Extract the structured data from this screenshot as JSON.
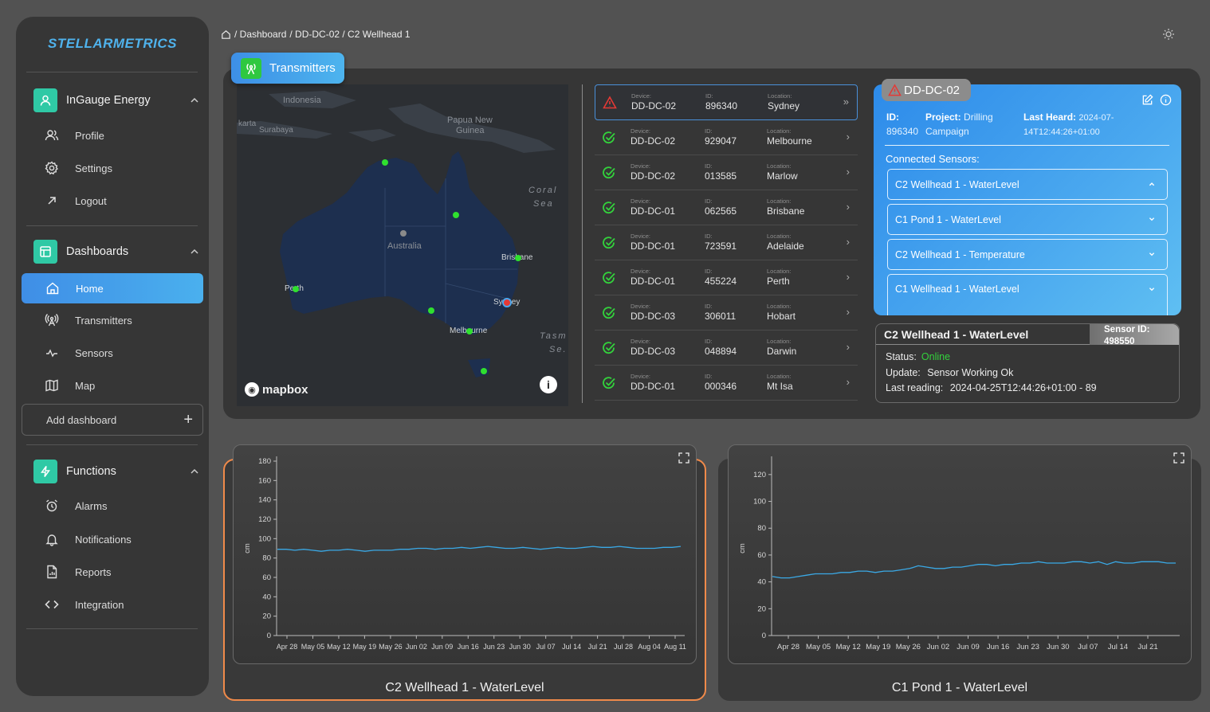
{
  "brand": "STELLARMETRICS",
  "sidebar": {
    "org_group": {
      "label": "InGauge Energy",
      "items": [
        {
          "label": "Profile"
        },
        {
          "label": "Settings"
        },
        {
          "label": "Logout"
        }
      ]
    },
    "dash_group": {
      "label": "Dashboards",
      "items": [
        {
          "label": "Home"
        },
        {
          "label": "Transmitters"
        },
        {
          "label": "Sensors"
        },
        {
          "label": "Map"
        }
      ]
    },
    "add_dashboard": "Add dashboard",
    "func_group": {
      "label": "Functions",
      "items": [
        {
          "label": "Alarms"
        },
        {
          "label": "Notifications"
        },
        {
          "label": "Reports"
        },
        {
          "label": "Integration"
        }
      ]
    }
  },
  "breadcrumb": [
    "/ Dashboard",
    "/ DD-DC-02 / C2 Wellhead 1"
  ],
  "transmitters_tab": "Transmitters",
  "map": {
    "labels": [
      {
        "text": "Indonesia"
      },
      {
        "text": "karta"
      },
      {
        "text": "Surabaya"
      },
      {
        "text": "Papua New"
      },
      {
        "text": "Guinea"
      },
      {
        "text": "Coral"
      },
      {
        "text": "Sea"
      },
      {
        "text": "Australia"
      },
      {
        "text": "Brisbane"
      },
      {
        "text": "Perth"
      },
      {
        "text": "Sydney"
      },
      {
        "text": "Melbourne"
      },
      {
        "text": "Tasm"
      },
      {
        "text": "Se."
      }
    ],
    "logo_text": "mapbox"
  },
  "list_labels": {
    "device": "Device:",
    "id": "ID:",
    "location": "Location:"
  },
  "transmitters": [
    {
      "device": "DD-DC-02",
      "id": "896340",
      "location": "Sydney",
      "status": "alert"
    },
    {
      "device": "DD-DC-02",
      "id": "929047",
      "location": "Melbourne",
      "status": "ok"
    },
    {
      "device": "DD-DC-02",
      "id": "013585",
      "location": "Marlow",
      "status": "ok"
    },
    {
      "device": "DD-DC-01",
      "id": "062565",
      "location": "Brisbane",
      "status": "ok"
    },
    {
      "device": "DD-DC-01",
      "id": "723591",
      "location": "Adelaide",
      "status": "ok"
    },
    {
      "device": "DD-DC-01",
      "id": "455224",
      "location": "Perth",
      "status": "ok"
    },
    {
      "device": "DD-DC-03",
      "id": "306011",
      "location": "Hobart",
      "status": "ok"
    },
    {
      "device": "DD-DC-03",
      "id": "048894",
      "location": "Darwin",
      "status": "ok"
    },
    {
      "device": "DD-DC-01",
      "id": "000346",
      "location": "Mt Isa",
      "status": "ok"
    }
  ],
  "device_card": {
    "name": "DD-DC-02",
    "id_label": "ID:",
    "id_value": "896340",
    "project_label": "Project:",
    "project_value_1": "Drilling",
    "project_value_2": "Campaign",
    "last_heard_label": "Last Heard:",
    "last_heard_value_1": "2024-07-",
    "last_heard_value_2": "14T12:44:26+01:00",
    "connected_title": "Connected Sensors:",
    "sensors": [
      {
        "label": "C2 Wellhead 1 - WaterLevel"
      },
      {
        "label": "C1 Pond 1 - WaterLevel"
      },
      {
        "label": "C2 Wellhead 1 - Temperature"
      },
      {
        "label": "C1 Wellhead 1 - WaterLevel"
      }
    ]
  },
  "sensor_detail": {
    "title": "C2 Wellhead 1 - WaterLevel",
    "sensor_id_label": "Sensor ID:",
    "sensor_id": "498550",
    "status_label": "Status:",
    "status_value": "Online",
    "update_label": "Update:",
    "update_value": "Sensor Working Ok",
    "last_reading_label": "Last reading:",
    "last_reading_value": "2024-04-25T12:44:26+01:00 - 89"
  },
  "colors": {
    "accent": "#4ab0ee",
    "selected_border": "#f08a4a",
    "ok": "#33d23c",
    "alert": "#e53935",
    "line": "#3aa9e6"
  },
  "chart_data": [
    {
      "type": "line",
      "title": "C2 Wellhead 1 - WaterLevel",
      "xlabel": "",
      "ylabel": "cm",
      "ylim": [
        0,
        180
      ],
      "yticks": [
        0,
        20,
        40,
        60,
        80,
        100,
        120,
        140,
        160,
        180
      ],
      "x_ticks": [
        "Apr 28",
        "May 05",
        "May 12",
        "May 19",
        "May 26",
        "Jun 02",
        "Jun 09",
        "Jun 16",
        "Jun 23",
        "Jun 30",
        "Jul 07",
        "Jul 14",
        "Jul 21",
        "Jul 28",
        "Aug 04",
        "Aug 11"
      ],
      "series": [
        {
          "values": [
            89,
            89,
            88,
            89,
            88,
            87,
            88,
            88,
            89,
            88,
            87,
            88,
            88,
            88,
            89,
            89,
            90,
            90,
            89,
            90,
            90,
            91,
            90,
            91,
            92,
            91,
            90,
            90,
            91,
            90,
            89,
            90,
            91,
            90,
            90,
            91,
            92,
            91,
            91,
            92,
            91,
            90,
            90,
            90,
            91,
            91,
            92
          ]
        }
      ]
    },
    {
      "type": "line",
      "title": "C1 Pond 1 - WaterLevel",
      "xlabel": "",
      "ylabel": "cm",
      "ylim": [
        0,
        130
      ],
      "yticks": [
        0,
        20,
        40,
        60,
        80,
        100,
        120
      ],
      "x_ticks": [
        "Apr 28",
        "May 05",
        "May 12",
        "May 19",
        "May 26",
        "Jun 02",
        "Jun 09",
        "Jun 16",
        "Jun 23",
        "Jun 30",
        "Jul 07",
        "Jul 14",
        "Jul 21"
      ],
      "series": [
        {
          "values": [
            44,
            43,
            43,
            44,
            45,
            46,
            46,
            46,
            47,
            47,
            48,
            48,
            47,
            48,
            48,
            49,
            50,
            52,
            51,
            50,
            50,
            51,
            51,
            52,
            53,
            53,
            52,
            53,
            53,
            54,
            54,
            55,
            54,
            54,
            54,
            55,
            55,
            54,
            55,
            53,
            55,
            54,
            54,
            55,
            55,
            55,
            54,
            54
          ]
        }
      ]
    }
  ]
}
